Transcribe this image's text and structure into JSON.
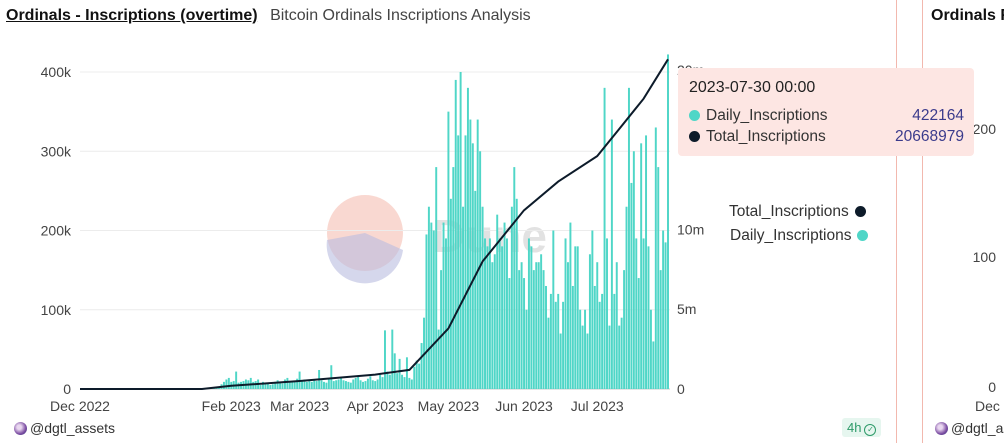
{
  "header": {
    "title": "Ordinals - Inscriptions (overtime)",
    "subtitle": "Bitcoin Ordinals Inscriptions Analysis"
  },
  "right_panel": {
    "title": "Ordinals F",
    "y_ticks": [
      "200",
      "100",
      "0"
    ],
    "x_tick": "Dec",
    "user": "@dgtl_ass"
  },
  "footer": {
    "user": "@dgtl_assets",
    "age": "4h"
  },
  "tooltip": {
    "timestamp": "2023-07-30 00:00",
    "rows": [
      {
        "label": "Daily_Inscriptions",
        "value": "422164",
        "color": "#4fd6c7"
      },
      {
        "label": "Total_Inscriptions",
        "value": "20668979",
        "color": "#0d1b2a"
      }
    ]
  },
  "legend": [
    {
      "label": "Total_Inscriptions",
      "color": "#0d1b2a"
    },
    {
      "label": "Daily_Inscriptions",
      "color": "#4fd6c7"
    }
  ],
  "watermark": "Dune",
  "chart_data": {
    "type": "bar",
    "x_range": [
      "2022-12-01",
      "2023-07-30"
    ],
    "x_ticks": [
      "Dec 2022",
      "Feb 2023",
      "Mar 2023",
      "Apr 2023",
      "May 2023",
      "Jun 2023",
      "Jul 2023"
    ],
    "y_left": {
      "ticks": [
        "0",
        "100k",
        "200k",
        "300k",
        "400k"
      ],
      "range": [
        0,
        430000
      ]
    },
    "y_right": {
      "ticks": [
        "0",
        "5m",
        "10m",
        "20m"
      ],
      "range": [
        0,
        21000000
      ]
    },
    "series": [
      {
        "name": "Daily_Inscriptions",
        "type": "bar",
        "color": "#4fd6c7",
        "axis": "left",
        "monthly_values": [
          {
            "month": "Dec 2022",
            "values": [
              0,
              0,
              0,
              0,
              0,
              0,
              0,
              0,
              0,
              0,
              0,
              0,
              0,
              0,
              0,
              0,
              0,
              0,
              0,
              0,
              0,
              0,
              0,
              0,
              0,
              0,
              0,
              0,
              0,
              0,
              0
            ]
          },
          {
            "month": "Jan 2023",
            "values": [
              0,
              0,
              0,
              0,
              0,
              0,
              0,
              0,
              0,
              0,
              0,
              0,
              0,
              0,
              0,
              0,
              0,
              0,
              0,
              0,
              0,
              0,
              200,
              500,
              900,
              1500,
              3000,
              6000,
              9000,
              12000,
              14000
            ]
          },
          {
            "month": "Feb 2023",
            "values": [
              9000,
              10000,
              22000,
              8000,
              9000,
              10000,
              12000,
              11000,
              14000,
              9000,
              10000,
              12000,
              5000,
              9000,
              8000,
              7000,
              5000,
              6000,
              9000,
              11000,
              8000,
              7000,
              12000,
              14000,
              10000,
              9000,
              9000,
              13000
            ]
          },
          {
            "month": "Mar 2023",
            "values": [
              22000,
              10000,
              12000,
              9000,
              11000,
              9000,
              12000,
              10000,
              24000,
              11000,
              9000,
              8000,
              12000,
              30000,
              10000,
              11000,
              12000,
              14000,
              11000,
              10000,
              9000,
              8000,
              12000,
              14000,
              16000,
              11000,
              9000,
              10000,
              13000,
              16000,
              11000
            ]
          },
          {
            "month": "Apr 2023",
            "values": [
              10000,
              12000,
              18000,
              15000,
              74000,
              22000,
              18000,
              75000,
              45000,
              20000,
              38000,
              18000,
              15000,
              40000,
              14000,
              12000,
              28000,
              36000,
              32000,
              58000,
              90000,
              195000,
              230000,
              210000,
              200000,
              280000,
              75000,
              150000,
              210000,
              190000
            ]
          },
          {
            "month": "May 2023",
            "values": [
              350000,
              240000,
              280000,
              390000,
              320000,
              400000,
              230000,
              320000,
              380000,
              340000,
              310000,
              250000,
              340000,
              300000,
              230000,
              190000,
              180000,
              190000,
              160000,
              170000,
              220000,
              190000,
              180000,
              210000,
              190000,
              140000,
              230000,
              280000,
              240000,
              150000,
              160000
            ]
          },
          {
            "month": "Jun 2023",
            "values": [
              140000,
              100000,
              190000,
              180000,
              150000,
              160000,
              160000,
              170000,
              150000,
              130000,
              90000,
              120000,
              200000,
              110000,
              120000,
              70000,
              110000,
              190000,
              160000,
              210000,
              130000,
              180000,
              180000,
              100000,
              80000,
              100000,
              70000,
              170000,
              200000,
              130000
            ]
          },
          {
            "month": "Jul 2023",
            "values": [
              160000,
              110000,
              120000,
              380000,
              190000,
              80000,
              340000,
              120000,
              160000,
              80000,
              90000,
              150000,
              230000,
              380000,
              260000,
              300000,
              190000,
              140000,
              310000,
              190000,
              320000,
              180000,
              100000,
              60000,
              330000,
              280000,
              150000,
              200000,
              185000,
              422164
            ]
          }
        ]
      },
      {
        "name": "Total_Inscriptions",
        "type": "line",
        "color": "#0d1b2a",
        "axis": "right",
        "points": [
          [
            "2022-12-01",
            0
          ],
          [
            "2023-01-20",
            0
          ],
          [
            "2023-02-01",
            200000
          ],
          [
            "2023-03-01",
            500000
          ],
          [
            "2023-04-01",
            900000
          ],
          [
            "2023-04-15",
            1200000
          ],
          [
            "2023-05-01",
            3800000
          ],
          [
            "2023-05-15",
            8000000
          ],
          [
            "2023-06-01",
            11200000
          ],
          [
            "2023-06-15",
            13000000
          ],
          [
            "2023-07-01",
            14600000
          ],
          [
            "2023-07-10",
            16300000
          ],
          [
            "2023-07-20",
            18200000
          ],
          [
            "2023-07-30",
            20668979
          ]
        ]
      }
    ]
  }
}
